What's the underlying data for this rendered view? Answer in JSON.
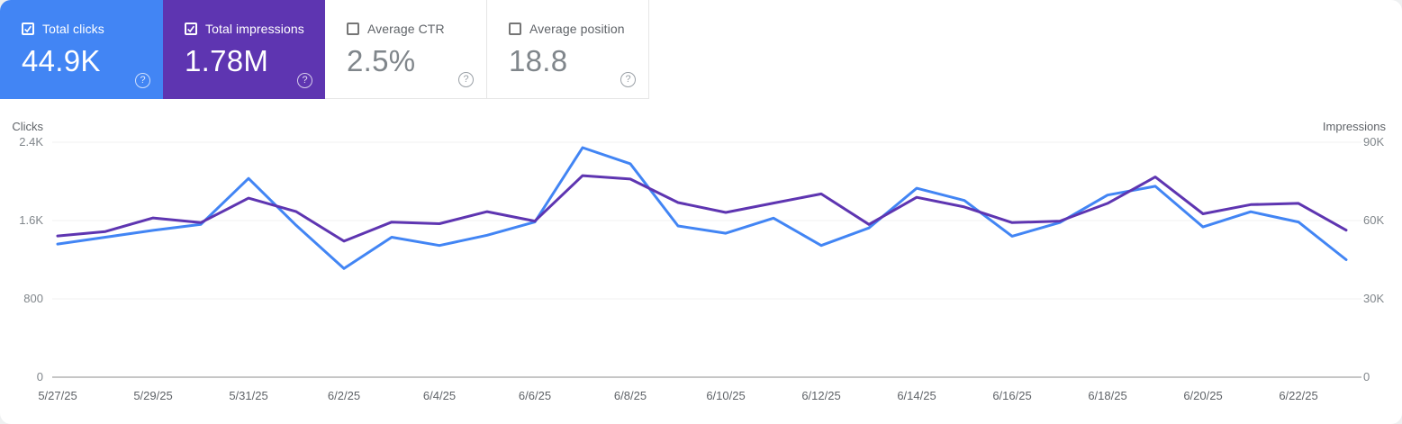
{
  "cards": [
    {
      "id": "total-clicks",
      "label": "Total clicks",
      "value": "44.9K",
      "checked": true,
      "bg": "#4285f4"
    },
    {
      "id": "total-impressions",
      "label": "Total impressions",
      "value": "1.78M",
      "checked": true,
      "bg": "#5e35b1"
    },
    {
      "id": "average-ctr",
      "label": "Average CTR",
      "value": "2.5%",
      "checked": false,
      "bg": "#ffffff"
    },
    {
      "id": "average-position",
      "label": "Average position",
      "value": "18.8",
      "checked": false,
      "bg": "#ffffff"
    }
  ],
  "icons": {
    "help": "?"
  },
  "colors": {
    "clicks_accent": "#4285f4",
    "impressions_accent": "#5e35b1",
    "gridline": "#f0f0f0",
    "axis_line": "#c6c6c6",
    "tick_text": "#80868b",
    "axis_title_text": "#5f6368",
    "date_text": "#5f6368"
  },
  "chart_data": {
    "type": "line",
    "title": "",
    "grid": true,
    "legend_position": "none",
    "x_dates": [
      "5/27/25",
      "5/28/25",
      "5/29/25",
      "5/30/25",
      "5/31/25",
      "6/1/25",
      "6/2/25",
      "6/3/25",
      "6/4/25",
      "6/5/25",
      "6/6/25",
      "6/7/25",
      "6/8/25",
      "6/9/25",
      "6/10/25",
      "6/11/25",
      "6/12/25",
      "6/13/25",
      "6/14/25",
      "6/15/25",
      "6/16/25",
      "6/17/25",
      "6/18/25",
      "6/19/25",
      "6/20/25",
      "6/21/25",
      "6/22/25",
      "6/23/25"
    ],
    "x_tick_labels": [
      "5/27/25",
      "5/29/25",
      "5/31/25",
      "6/2/25",
      "6/4/25",
      "6/6/25",
      "6/8/25",
      "6/10/25",
      "6/12/25",
      "6/14/25",
      "6/16/25",
      "6/18/25",
      "6/20/25",
      "6/22/25"
    ],
    "x_tick_every": 2,
    "left_axis": {
      "title": "Clicks",
      "range": [
        0,
        2400
      ],
      "tick_values": [
        2400,
        1600,
        800,
        0
      ],
      "tick_labels": [
        "2.4K",
        "1.6K",
        "800",
        "0"
      ]
    },
    "right_axis": {
      "title": "Impressions",
      "range": [
        0,
        90000
      ],
      "tick_values": [
        90000,
        60000,
        30000,
        0
      ],
      "tick_labels": [
        "90K",
        "60K",
        "30K",
        "0"
      ]
    },
    "series": [
      {
        "name": "Clicks",
        "axis": "left",
        "color": "#4285f4",
        "values": [
          1360,
          1430,
          1500,
          1560,
          2030,
          1550,
          1110,
          1430,
          1345,
          1450,
          1585,
          2345,
          2180,
          1545,
          1470,
          1625,
          1345,
          1525,
          1930,
          1805,
          1440,
          1580,
          1860,
          1950,
          1535,
          1690,
          1585,
          1200
        ]
      },
      {
        "name": "Impressions",
        "axis": "right",
        "color": "#5e35b1",
        "values": [
          54100,
          55800,
          61000,
          59200,
          68600,
          63400,
          52100,
          59400,
          58800,
          63400,
          59800,
          77200,
          75900,
          66900,
          63100,
          66700,
          70200,
          58500,
          68900,
          65200,
          59200,
          59800,
          66600,
          76700,
          62600,
          66100,
          66600,
          56300
        ]
      }
    ]
  }
}
